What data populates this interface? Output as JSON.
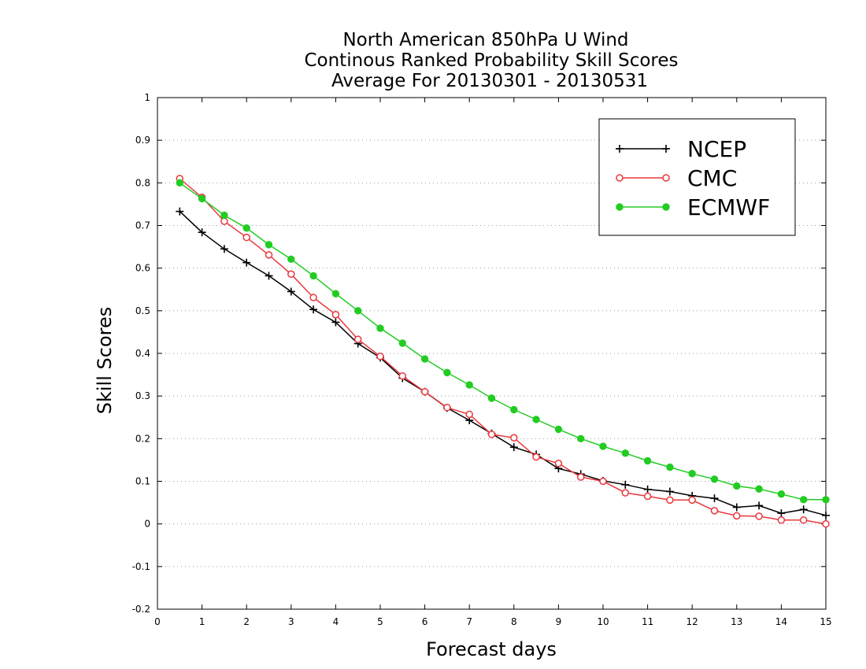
{
  "chart_data": {
    "type": "line",
    "title_lines": [
      "North American 850hPa U Wind",
      "Continous Ranked Probability Skill Scores",
      "Average For 20130301 - 20130531"
    ],
    "xlabel": "Forecast days",
    "ylabel": "Skill Scores",
    "xlim": [
      0,
      15
    ],
    "ylim": [
      -0.2,
      1
    ],
    "x_ticks": [
      "0",
      "1",
      "2",
      "3",
      "4",
      "5",
      "6",
      "7",
      "8",
      "9",
      "10",
      "11",
      "12",
      "13",
      "14",
      "15"
    ],
    "y_ticks": [
      "-0.2",
      "-0.1",
      "0",
      "0.1",
      "0.2",
      "0.3",
      "0.4",
      "0.5",
      "0.6",
      "0.7",
      "0.8",
      "0.9",
      "1"
    ],
    "grid": true,
    "legend_position": "top-right",
    "x": [
      0.5,
      1,
      1.5,
      2,
      2.5,
      3,
      3.5,
      4,
      4.5,
      5,
      5.5,
      6,
      6.5,
      7,
      7.5,
      8,
      8.5,
      9,
      9.5,
      10,
      10.5,
      11,
      11.5,
      12,
      12.5,
      13,
      13.5,
      14,
      14.5,
      15
    ],
    "series": [
      {
        "name": "NCEP",
        "color": "#000000",
        "marker": "plus",
        "values": [
          0.733,
          0.684,
          0.645,
          0.613,
          0.582,
          0.545,
          0.503,
          0.473,
          0.423,
          0.39,
          0.342,
          0.31,
          0.272,
          0.243,
          0.212,
          0.18,
          0.163,
          0.13,
          0.117,
          0.101,
          0.092,
          0.081,
          0.076,
          0.066,
          0.06,
          0.039,
          0.043,
          0.025,
          0.034,
          0.02
        ]
      },
      {
        "name": "CMC",
        "color": "#e8383d",
        "marker": "open-circle",
        "values": [
          0.81,
          0.766,
          0.71,
          0.672,
          0.631,
          0.586,
          0.531,
          0.491,
          0.433,
          0.393,
          0.347,
          0.31,
          0.273,
          0.257,
          0.21,
          0.202,
          0.157,
          0.142,
          0.11,
          0.1,
          0.073,
          0.065,
          0.056,
          0.056,
          0.031,
          0.019,
          0.018,
          0.009,
          0.009,
          0.0
        ]
      },
      {
        "name": "ECMWF",
        "color": "#22cc22",
        "marker": "filled-circle",
        "values": [
          0.8,
          0.763,
          0.724,
          0.694,
          0.655,
          0.621,
          0.582,
          0.54,
          0.5,
          0.459,
          0.424,
          0.387,
          0.355,
          0.326,
          0.295,
          0.268,
          0.245,
          0.222,
          0.2,
          0.182,
          0.166,
          0.148,
          0.133,
          0.118,
          0.105,
          0.089,
          0.082,
          0.07,
          0.057,
          0.057
        ]
      }
    ]
  }
}
